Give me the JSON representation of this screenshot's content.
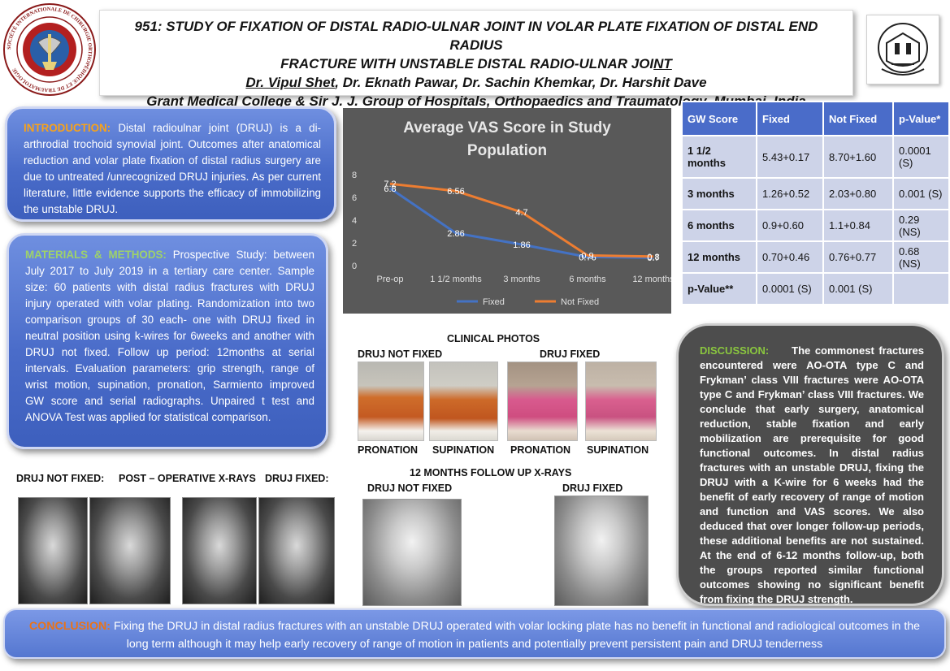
{
  "header": {
    "title_line1": "951: STUDY OF FIXATION OF DISTAL RADIO-ULNAR JOINT IN VOLAR PLATE FIXATION OF DISTAL END RADIUS",
    "title_line2a": "FRACTURE WITH UNSTABLE DISTAL RADIO-ULNAR JOI",
    "title_line2b": "NT",
    "author_first": "Dr. Vipul Shet",
    "authors_rest": ", Dr. Eknath Pawar, Dr. Sachin Khemkar, Dr. Harshit Dave",
    "institution": "Grant Medical College & Sir J. J. Group of Hospitals, Orthopaedics and Traumatology, Mumbai, India",
    "logo_left_text": "SOCIÉTÉ INTERNATIONALE DE CHIRURGIE ORTHOPÉDIQUE ET DE TRAUMATOLOGIE"
  },
  "introduction": {
    "heading": "INTRODUCTION:",
    "body": " Distal radioulnar joint (DRUJ) is a di-arthrodial trochoid synovial joint. Outcomes after anatomical reduction and volar plate fixation of distal radius surgery are due to untreated /unrecognized DRUJ injuries. As per current literature, little evidence supports the efficacy of immobilizing the unstable DRUJ."
  },
  "materials_methods": {
    "heading": "MATERIALS & METHODS:",
    "body": " Prospective Study: between July 2017 to July 2019 in a tertiary care center. Sample size: 60 patients with distal radius fractures with DRUJ injury operated with volar plating. Randomization into two comparison groups of 30 each- one with DRUJ fixed in neutral position using k-wires for 6weeks and another with DRUJ not fixed. Follow up period: 12months at serial intervals. Evaluation parameters: grip strength, range of wrist motion, supination, pronation, Sarmiento improved GW score and serial radiographs.  Unpaired  t test and ANOVA Test was applied for statistical comparison."
  },
  "chart_data": {
    "type": "line",
    "title": "Average VAS Score in Study Population",
    "categories": [
      "Pre-op",
      "1 1/2 months",
      "3 months",
      "6 months",
      "12 months"
    ],
    "series": [
      {
        "name": "Fixed",
        "values": [
          6.8,
          2.86,
          1.86,
          0.76,
          0.7
        ],
        "labels": [
          "6.8",
          "2.86",
          "1.86",
          "0.76",
          "0.7"
        ],
        "color": "#4472c4"
      },
      {
        "name": "Not Fixed",
        "values": [
          7.2,
          6.56,
          4.7,
          0.9,
          0.8
        ],
        "labels": [
          "7.2",
          "6.56",
          "4.7",
          "0.9",
          "0.8"
        ],
        "color": "#ed7d31"
      }
    ],
    "y_ticks": [
      "0",
      "2",
      "4",
      "6",
      "8"
    ],
    "ylim": [
      0,
      8
    ],
    "grid": false,
    "legend": "bottom",
    "background": "#595959"
  },
  "table": {
    "headers": [
      "GW Score",
      "Fixed",
      "Not Fixed",
      "p-Value*"
    ],
    "rows": [
      [
        "1 1/2 months",
        "5.43+0.17",
        "8.70+1.60",
        "0.0001 (S)"
      ],
      [
        "3 months",
        "1.26+0.52",
        "2.03+0.80",
        "0.001 (S)"
      ],
      [
        "6 months",
        "0.9+0.60",
        "1.1+0.84",
        "0.29 (NS)"
      ],
      [
        "12 months",
        "0.70+0.46",
        "0.76+0.77",
        "0.68 (NS)"
      ],
      [
        "p-Value**",
        "0.0001 (S)",
        "0.001 (S)",
        ""
      ]
    ],
    "header_color": "#4a6cc9",
    "row_color": "#cdd3e8"
  },
  "clinical": {
    "heading": "CLINICAL PHOTOS",
    "group_not_fixed": "DRUJ NOT FIXED",
    "group_fixed": "DRUJ FIXED",
    "captions": [
      "PRONATION",
      "SUPINATION",
      "PRONATION",
      "SUPINATION"
    ]
  },
  "xrays_post": {
    "label_left": "DRUJ NOT FIXED:",
    "label_mid": "POST – OPERATIVE X-RAYS",
    "label_right": "DRUJ  FIXED:"
  },
  "xrays_12m": {
    "heading": "12 MONTHS FOLLOW UP X-RAYS",
    "label_left": "DRUJ NOT FIXED",
    "label_right": "DRUJ FIXED"
  },
  "discussion": {
    "heading": "DISCUSSION:",
    "body": "     The commonest fractures encountered were AO-OTA type C and Frykman’ class VIII fractures were AO-OTA type C and Frykman’ class VIII fractures. We conclude that early surgery, anatomical reduction, stable fixation and early mobilization are prerequisite for good functional outcomes. In distal radius fractures with an unstable DRUJ, fixing the DRUJ with a K-wire for 6 weeks had the benefit of early recovery of range of motion and function and VAS scores. We also deduced that over longer follow-up periods, these additional benefits are not sustained. At the end of 6-12 months follow-up, both the groups reported similar functional outcomes showing no significant benefit from fixing the DRUJ strength."
  },
  "conclusion": {
    "heading": "CONCLUSION:",
    "body": " Fixing the DRUJ in distal radius fractures with an unstable DRUJ operated with volar locking plate has no benefit in functional and radiological outcomes in the long term although it may help early recovery of range of motion in patients and potentially prevent persistent pain and DRUJ tenderness"
  }
}
